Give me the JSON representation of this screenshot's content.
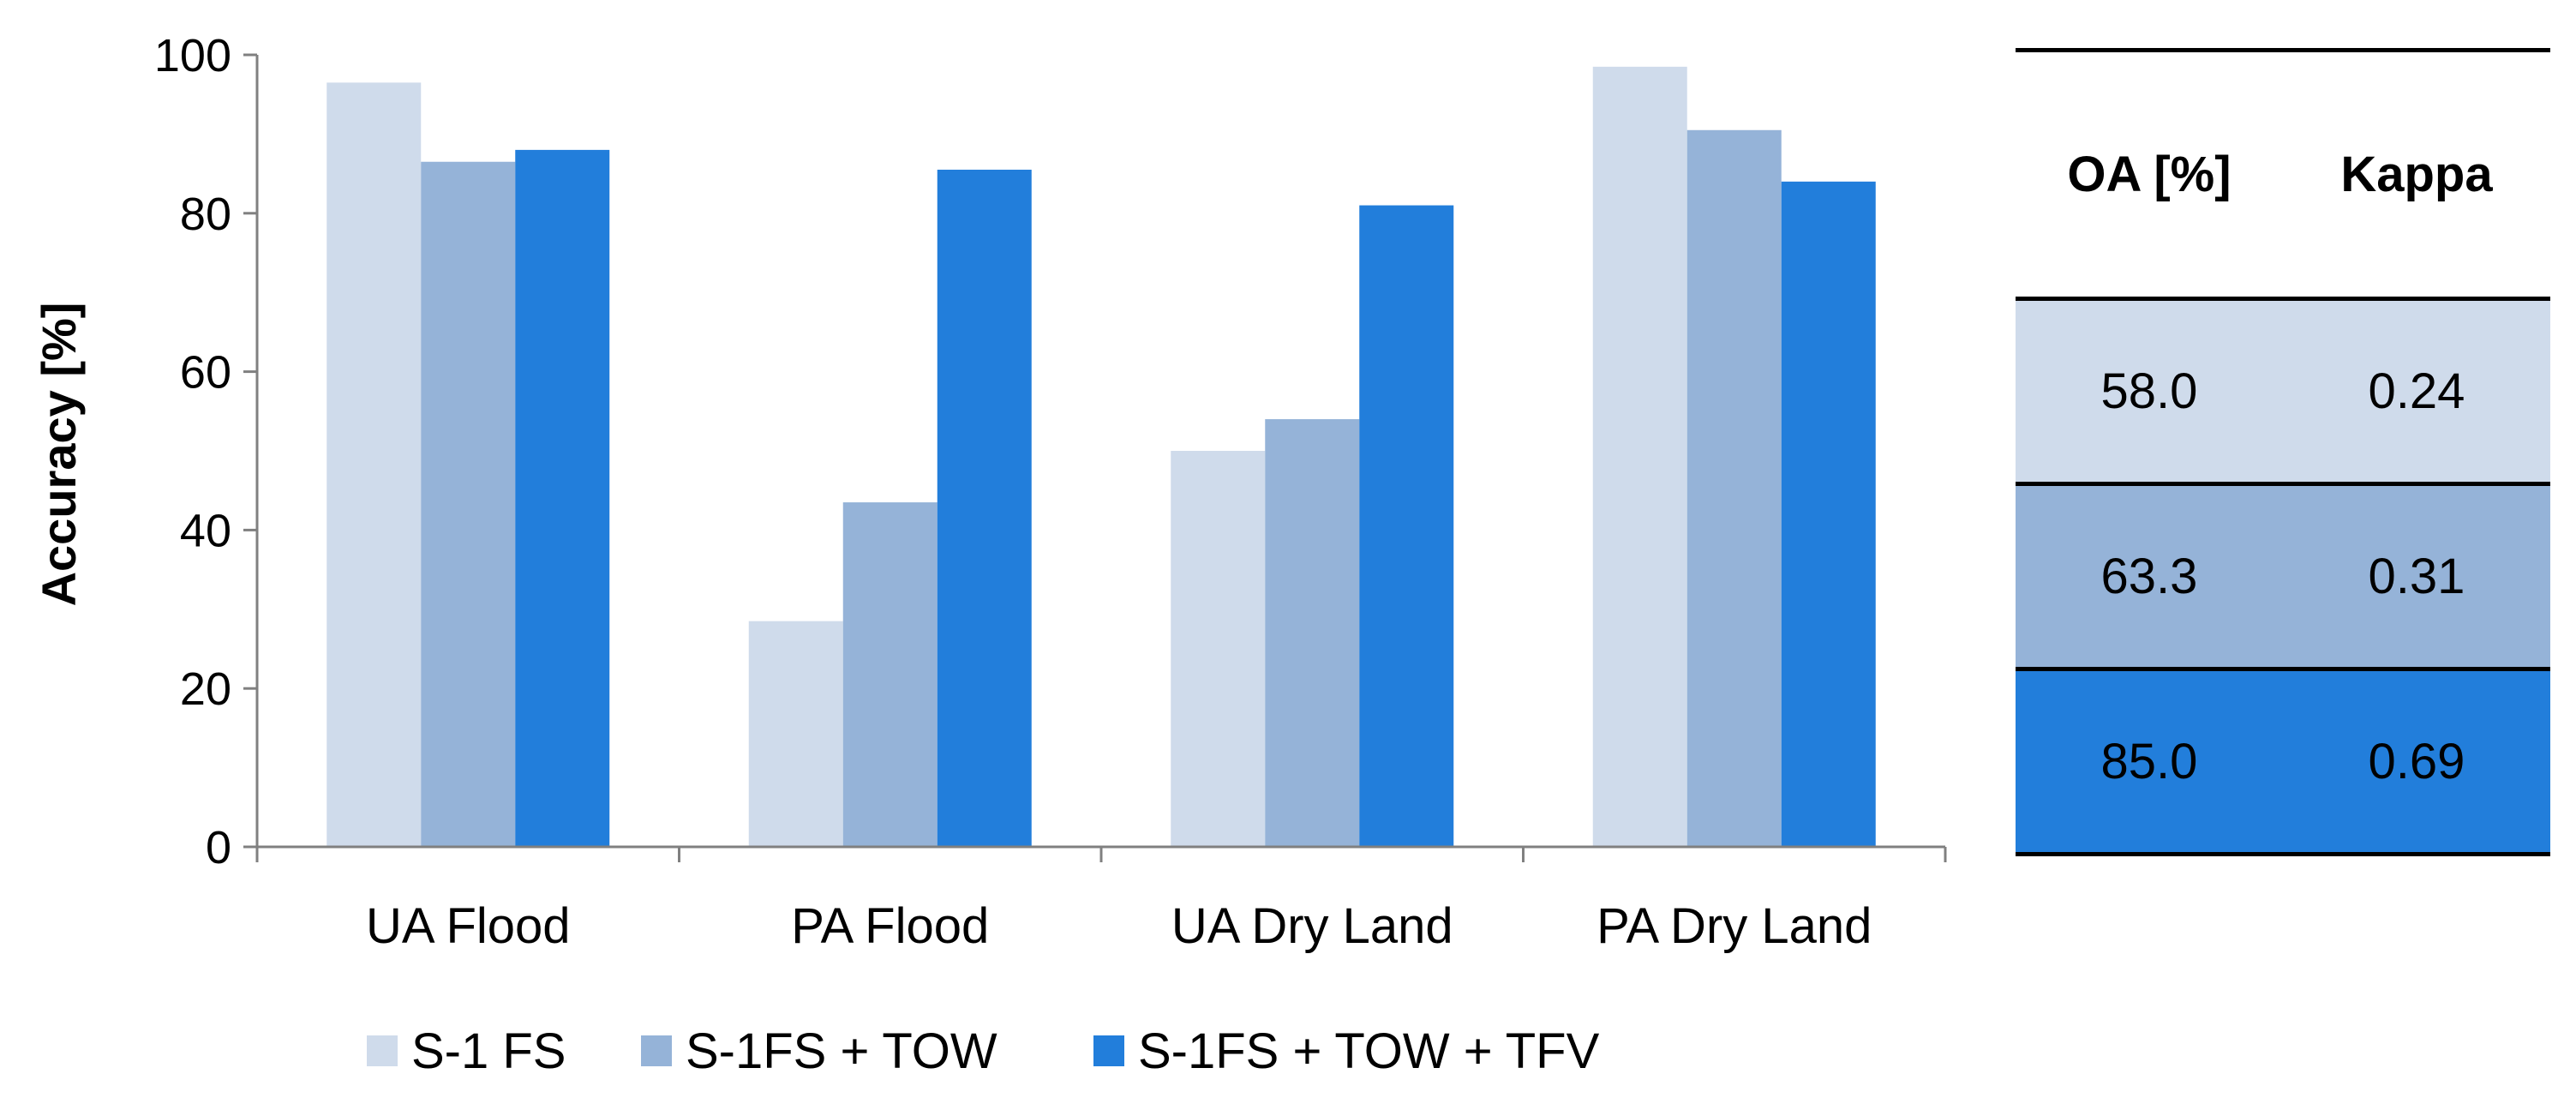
{
  "chart_data": {
    "type": "bar",
    "title": "",
    "xlabel": "",
    "ylabel": "Accuracy [%]",
    "ylim": [
      0,
      100
    ],
    "yticks": [
      "0",
      "20",
      "40",
      "60",
      "80",
      "100"
    ],
    "grid": false,
    "legend_position": "bottom",
    "categories": [
      "UA Flood",
      "PA Flood",
      "UA Dry Land",
      "PA Dry Land"
    ],
    "series": [
      {
        "name": "S-1 FS",
        "color": "#cfdbeb",
        "values": [
          96.5,
          28.5,
          50.0,
          98.5
        ]
      },
      {
        "name": "S-1FS + TOW",
        "color": "#95b3d8",
        "values": [
          86.5,
          43.5,
          54.0,
          90.5
        ]
      },
      {
        "name": "S-1FS + TOW + TFV",
        "color": "#227edb",
        "values": [
          88.0,
          85.5,
          81.0,
          84.0
        ]
      }
    ]
  },
  "table": {
    "headers": [
      "OA [%]",
      "Kappa"
    ],
    "rows": [
      {
        "oa": "58.0",
        "kappa": "0.24",
        "color": "#cfdbeb"
      },
      {
        "oa": "63.3",
        "kappa": "0.31",
        "color": "#95b3d8"
      },
      {
        "oa": "85.0",
        "kappa": "0.69",
        "color": "#227edb"
      }
    ]
  }
}
